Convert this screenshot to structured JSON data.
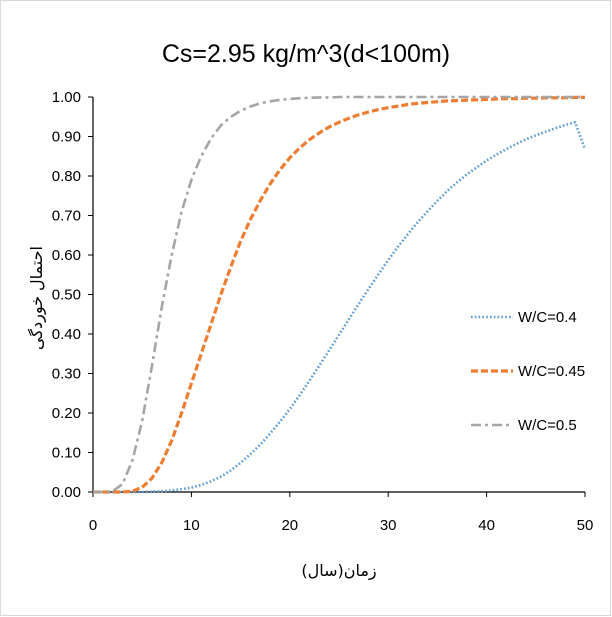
{
  "chart_data": {
    "type": "line",
    "title": "Cs=2.95 kg/m^3(d<100m)",
    "xlabel": "زمان(سال)",
    "ylabel": "احتمال خوردگی",
    "xlim": [
      0,
      50
    ],
    "ylim": [
      0,
      1
    ],
    "x_ticks": [
      "0",
      "10",
      "20",
      "30",
      "40",
      "50"
    ],
    "y_ticks": [
      "0.00",
      "0.10",
      "0.20",
      "0.30",
      "0.40",
      "0.50",
      "0.60",
      "0.70",
      "0.80",
      "0.90",
      "1.00"
    ],
    "grid": false,
    "legend_position": "right",
    "x": [
      0,
      1,
      2,
      3,
      4,
      5,
      6,
      7,
      8,
      9,
      10,
      11,
      12,
      13,
      14,
      15,
      16,
      17,
      18,
      19,
      20,
      21,
      22,
      23,
      24,
      25,
      26,
      27,
      28,
      29,
      30,
      31,
      32,
      33,
      34,
      35,
      36,
      37,
      38,
      39,
      40,
      41,
      42,
      43,
      44,
      45,
      46,
      47,
      48,
      49,
      50
    ],
    "series": [
      {
        "name": "W/C=0.4",
        "color": "#5b9bd5",
        "dash": "dotted",
        "values": [
          0.0,
          0.0,
          0.0,
          0.0,
          0.0,
          0.0,
          0.001,
          0.002,
          0.004,
          0.007,
          0.011,
          0.018,
          0.027,
          0.039,
          0.055,
          0.074,
          0.096,
          0.12,
          0.148,
          0.178,
          0.21,
          0.245,
          0.282,
          0.32,
          0.359,
          0.398,
          0.437,
          0.476,
          0.514,
          0.551,
          0.587,
          0.621,
          0.653,
          0.683,
          0.711,
          0.737,
          0.762,
          0.784,
          0.804,
          0.822,
          0.839,
          0.854,
          0.868,
          0.881,
          0.893,
          0.903,
          0.912,
          0.921,
          0.929,
          0.936,
          0.868
        ]
      },
      {
        "name": "W/C=0.45",
        "color": "#ed7d31",
        "dash": "dashed",
        "values": [
          0.0,
          0.0,
          0.0,
          0.0,
          0.002,
          0.012,
          0.035,
          0.075,
          0.13,
          0.2,
          0.275,
          0.35,
          0.425,
          0.5,
          0.57,
          0.635,
          0.69,
          0.738,
          0.78,
          0.816,
          0.846,
          0.871,
          0.892,
          0.909,
          0.924,
          0.936,
          0.946,
          0.955,
          0.962,
          0.968,
          0.973,
          0.977,
          0.981,
          0.984,
          0.986,
          0.988,
          0.99,
          0.991,
          0.992,
          0.993,
          0.994,
          0.995,
          0.996,
          0.996,
          0.997,
          0.997,
          0.998,
          0.998,
          0.998,
          0.999,
          0.999
        ]
      },
      {
        "name": "W/C=0.5",
        "color": "#a5a5a5",
        "dash": "dashdot",
        "values": [
          0.0,
          0.0,
          0.002,
          0.02,
          0.08,
          0.18,
          0.32,
          0.47,
          0.6,
          0.71,
          0.79,
          0.85,
          0.895,
          0.928,
          0.95,
          0.965,
          0.976,
          0.984,
          0.989,
          0.993,
          0.995,
          0.997,
          0.998,
          0.999,
          0.999,
          1.0,
          1.0,
          1.0,
          1.0,
          1.0,
          1.0,
          1.0,
          1.0,
          1.0,
          1.0,
          1.0,
          1.0,
          1.0,
          1.0,
          1.0,
          1.0,
          1.0,
          1.0,
          1.0,
          1.0,
          1.0,
          1.0,
          1.0,
          1.0,
          1.0,
          1.0
        ]
      }
    ]
  }
}
